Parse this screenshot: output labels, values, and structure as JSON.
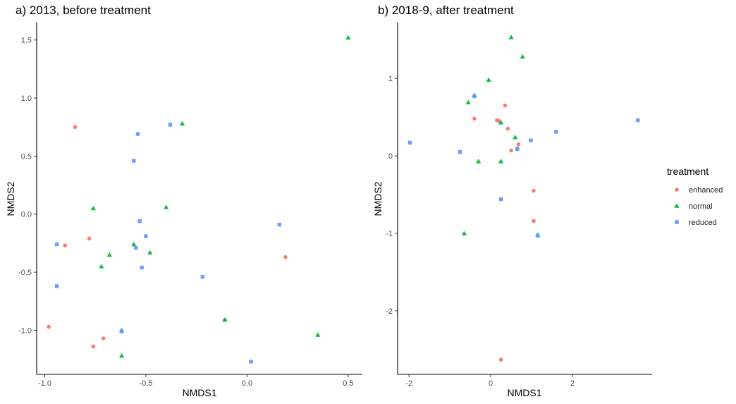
{
  "colors": {
    "enhanced": "#F8766D",
    "normal": "#00BA38",
    "reduced": "#619CFF"
  },
  "legend": {
    "title": "treatment",
    "items": [
      {
        "key": "enhanced",
        "label": "enhanced",
        "shape": "circle"
      },
      {
        "key": "normal",
        "label": "normal",
        "shape": "triangle"
      },
      {
        "key": "reduced",
        "label": "reduced",
        "shape": "square"
      }
    ],
    "placement": "right"
  },
  "chart_data": [
    {
      "type": "scatter",
      "title": "a) 2013, before treatment",
      "xlabel": "NMDS1",
      "ylabel": "NMDS2",
      "xlim": [
        -1.04,
        0.57
      ],
      "ylim": [
        -1.38,
        1.65
      ],
      "xticks": [
        -1.0,
        -0.5,
        0.0,
        0.5
      ],
      "xtick_labels": [
        "-1.0",
        "-0.5",
        "0.0",
        "0.5"
      ],
      "yticks": [
        -1.0,
        -0.5,
        0.0,
        0.5,
        1.0,
        1.5
      ],
      "ytick_labels": [
        "-1.0",
        "-0.5",
        "0.0",
        "0.5",
        "1.0",
        "1.5"
      ],
      "grid": false,
      "series": [
        {
          "name": "enhanced",
          "points": [
            [
              -0.85,
              0.75
            ],
            [
              -0.78,
              -0.21
            ],
            [
              -0.9,
              -0.27
            ],
            [
              -0.98,
              -0.97
            ],
            [
              -0.76,
              -1.14
            ],
            [
              -0.71,
              -1.07
            ],
            [
              0.19,
              -0.37
            ],
            [
              -0.11,
              -0.91
            ]
          ]
        },
        {
          "name": "normal",
          "points": [
            [
              0.5,
              1.52
            ],
            [
              -0.32,
              0.78
            ],
            [
              -0.76,
              0.05
            ],
            [
              -0.4,
              0.06
            ],
            [
              -0.56,
              -0.26
            ],
            [
              -0.48,
              -0.33
            ],
            [
              -0.68,
              -0.35
            ],
            [
              -0.72,
              -0.45
            ],
            [
              -0.62,
              -1.0
            ],
            [
              -0.62,
              -1.22
            ],
            [
              0.35,
              -1.04
            ],
            [
              -0.11,
              -0.91
            ]
          ]
        },
        {
          "name": "reduced",
          "points": [
            [
              -0.38,
              0.77
            ],
            [
              -0.54,
              0.69
            ],
            [
              -0.56,
              0.46
            ],
            [
              -0.53,
              -0.06
            ],
            [
              -0.5,
              -0.19
            ],
            [
              -0.55,
              -0.29
            ],
            [
              -0.52,
              -0.46
            ],
            [
              -0.94,
              -0.26
            ],
            [
              -0.94,
              -0.62
            ],
            [
              -0.22,
              -0.54
            ],
            [
              0.16,
              -0.09
            ],
            [
              0.02,
              -1.27
            ],
            [
              -0.62,
              -1.01
            ]
          ]
        }
      ]
    },
    {
      "type": "scatter",
      "title": "b) 2018-9, after treatment",
      "xlabel": "NMDS1",
      "ylabel": "NMDS2",
      "xlim": [
        -2.28,
        3.95
      ],
      "ylim": [
        -2.82,
        1.72
      ],
      "xticks": [
        -2,
        0,
        2
      ],
      "xtick_labels": [
        "-2",
        "0",
        "2"
      ],
      "yticks": [
        -2,
        -1,
        0,
        1
      ],
      "ytick_labels": [
        "-2",
        "-1",
        "0",
        "1"
      ],
      "grid": false,
      "series": [
        {
          "name": "enhanced",
          "points": [
            [
              0.35,
              0.65
            ],
            [
              -0.4,
              0.48
            ],
            [
              0.15,
              0.46
            ],
            [
              0.2,
              0.45
            ],
            [
              0.42,
              0.35
            ],
            [
              0.5,
              0.07
            ],
            [
              0.68,
              0.15
            ],
            [
              0.65,
              0.09
            ],
            [
              1.05,
              -0.45
            ],
            [
              1.05,
              -0.84
            ],
            [
              0.25,
              -0.56
            ],
            [
              0.25,
              -2.63
            ]
          ]
        },
        {
          "name": "normal",
          "points": [
            [
              0.5,
              1.53
            ],
            [
              0.78,
              1.28
            ],
            [
              -0.05,
              0.98
            ],
            [
              -0.4,
              0.78
            ],
            [
              -0.55,
              0.69
            ],
            [
              0.25,
              0.43
            ],
            [
              0.6,
              0.24
            ],
            [
              0.65,
              0.1
            ],
            [
              -0.3,
              -0.07
            ],
            [
              0.25,
              -0.07
            ],
            [
              -0.65,
              -1.0
            ],
            [
              1.15,
              -1.02
            ]
          ]
        },
        {
          "name": "reduced",
          "points": [
            [
              -0.4,
              0.77
            ],
            [
              -1.98,
              0.17
            ],
            [
              -0.75,
              0.05
            ],
            [
              0.98,
              0.2
            ],
            [
              1.6,
              0.31
            ],
            [
              3.6,
              0.46
            ],
            [
              0.25,
              -0.56
            ],
            [
              1.15,
              -1.03
            ],
            [
              0.65,
              0.09
            ]
          ]
        }
      ]
    }
  ]
}
